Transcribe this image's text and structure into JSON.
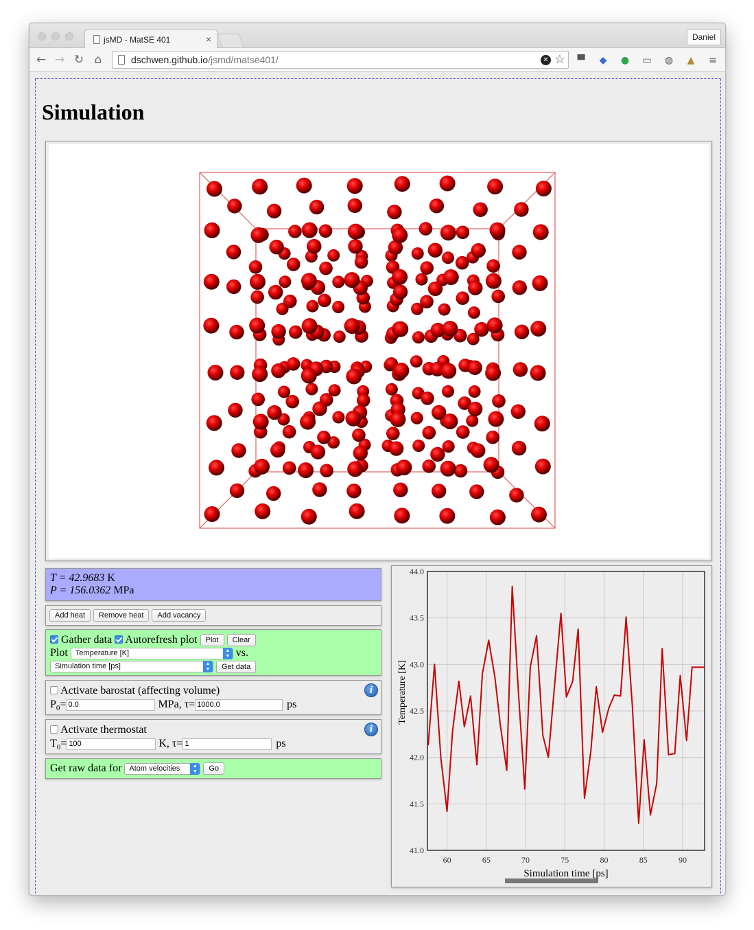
{
  "browser": {
    "tab_title": "jsMD - MatSE 401",
    "tab_close": "×",
    "profile": "Daniel",
    "url_domain": "dschwen.github.io",
    "url_path": "/jsmd/matse401/"
  },
  "page": {
    "heading": "Simulation"
  },
  "status": {
    "T_label": "T = 42.9683",
    "T_unit": "K",
    "P_label": "P = 156.0362",
    "P_unit": "MPa"
  },
  "heat": {
    "add_heat": "Add heat",
    "remove_heat": "Remove heat",
    "add_vacancy": "Add vacancy"
  },
  "plot_controls": {
    "gather_label": "Gather data",
    "gather_checked": true,
    "autorefresh_label": "Autorefresh plot",
    "autorefresh_checked": true,
    "plot_button": "Plot",
    "clear_button": "Clear",
    "plot_prefix": "Plot",
    "y_select": "Temperature [K]",
    "vs_label": "vs.",
    "x_select": "Simulation time [ps]",
    "get_data_button": "Get data"
  },
  "barostat": {
    "label": "Activate barostat (affecting volume)",
    "checked": false,
    "p0_label": "P",
    "p0_sub": "0",
    "p0_eq": "=",
    "p0_value": "0.0",
    "unit_tau": "MPa, τ=",
    "tau_value": "1000.0",
    "ps": "ps"
  },
  "thermostat": {
    "label": "Activate thermostat",
    "checked": false,
    "t0_label": "T",
    "t0_sub": "0",
    "t0_eq": "=",
    "t0_value": "100",
    "unit_tau": "K, τ=",
    "tau_value": "1",
    "ps": "ps"
  },
  "rawdata": {
    "label": "Get raw data for",
    "select": "Atom velocities",
    "go_button": "Go"
  },
  "info_glyph": "i",
  "chart_data": {
    "type": "line",
    "xlabel": "Simulation time [ps]",
    "ylabel": "Temperature [K]",
    "xlim": [
      57.5,
      92.8
    ],
    "ylim": [
      41.0,
      44.0
    ],
    "xticks": [
      60,
      65,
      70,
      75,
      80,
      85,
      90
    ],
    "yticks": [
      41.0,
      41.5,
      42.0,
      42.5,
      43.0,
      43.5,
      44.0
    ],
    "grid": true,
    "line_color": "#cc0000",
    "x": [
      57.6,
      58.4,
      59.2,
      60.0,
      60.7,
      61.5,
      62.2,
      63.0,
      63.8,
      64.5,
      65.3,
      66.1,
      66.8,
      67.6,
      68.3,
      69.1,
      69.9,
      70.6,
      71.4,
      72.2,
      72.9,
      73.7,
      74.5,
      75.2,
      76.0,
      76.7,
      77.5,
      78.3,
      79.0,
      79.8,
      80.6,
      81.3,
      82.1,
      82.8,
      83.6,
      84.4,
      85.1,
      85.9,
      86.7,
      87.4,
      88.2,
      89.0,
      89.7,
      90.5,
      91.2,
      92.0,
      92.8
    ],
    "y": [
      42.13,
      43.0,
      42.0,
      41.42,
      42.28,
      42.82,
      42.33,
      42.66,
      41.92,
      42.9,
      43.26,
      42.86,
      42.34,
      41.86,
      43.84,
      42.68,
      41.66,
      42.97,
      43.31,
      42.24,
      42.0,
      42.78,
      43.55,
      42.65,
      42.82,
      43.38,
      41.56,
      42.06,
      42.76,
      42.27,
      42.53,
      42.67,
      42.66,
      43.51,
      42.55,
      41.29,
      42.19,
      41.38,
      41.72,
      43.17,
      42.03,
      42.04,
      42.88,
      42.18,
      42.97,
      42.97,
      42.97
    ]
  }
}
